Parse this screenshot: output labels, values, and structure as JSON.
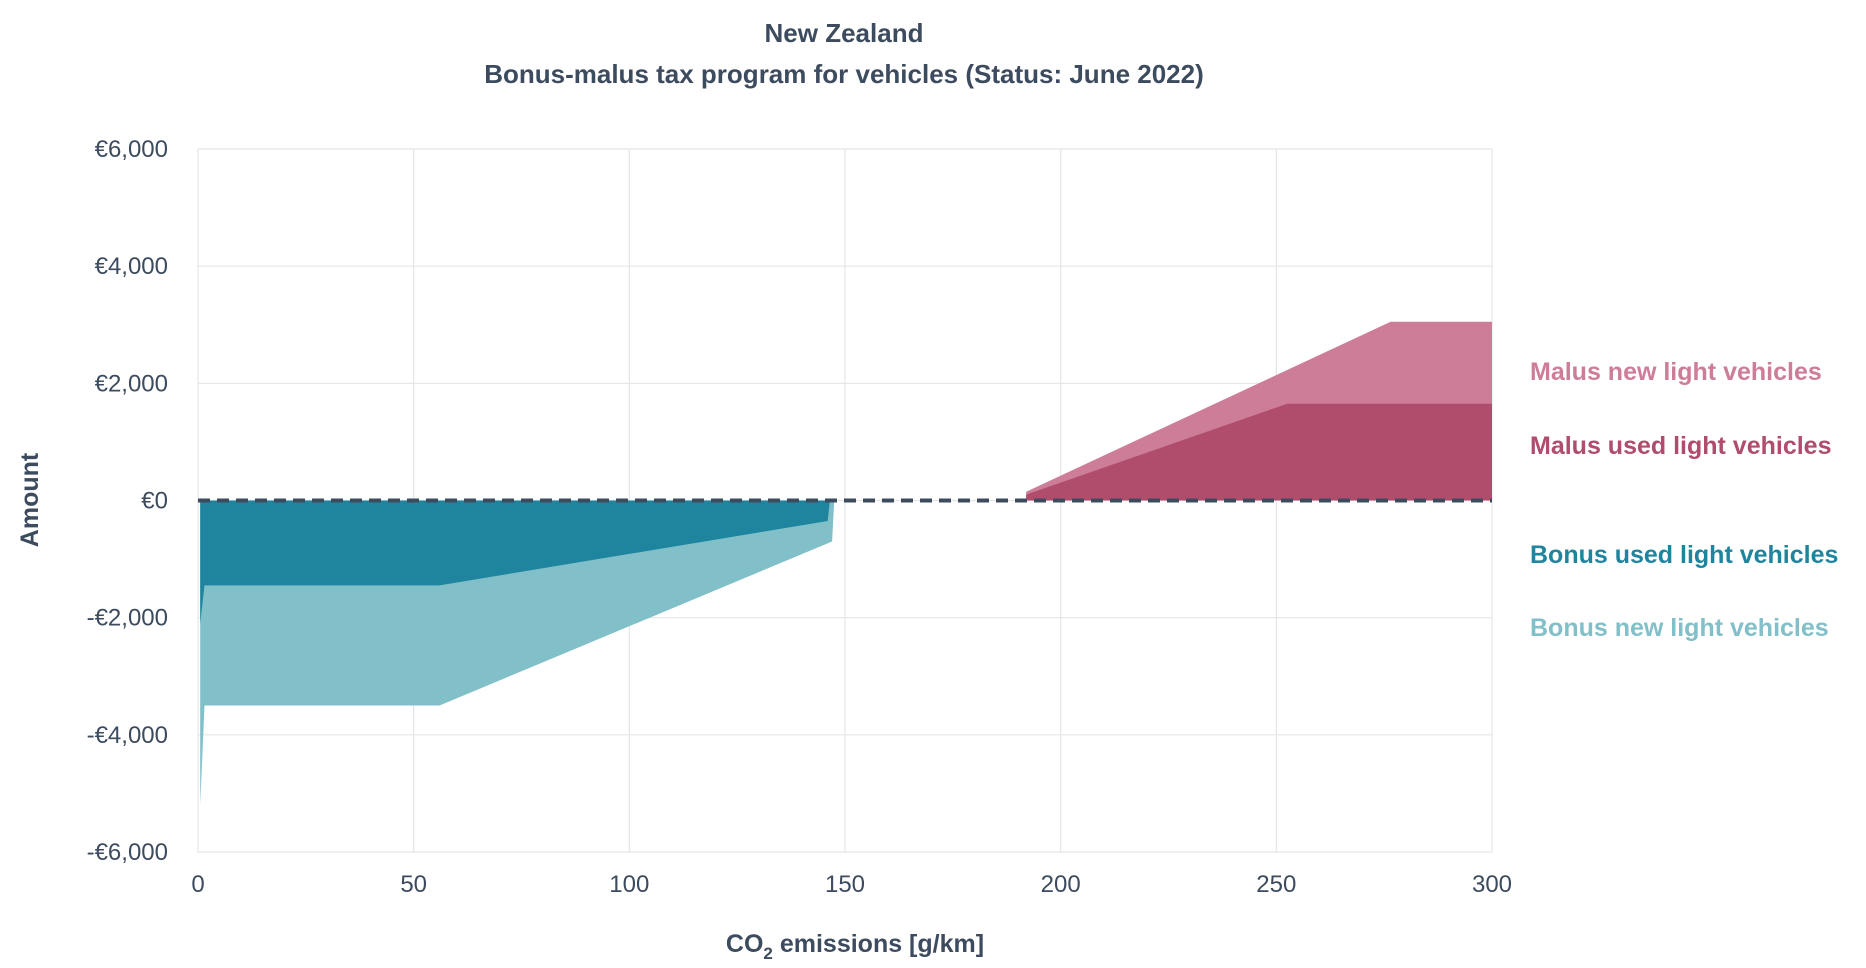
{
  "chart_data": {
    "type": "area",
    "title": "New Zealand",
    "subtitle": "Bonus-malus tax program for vehicles (Status: June 2022)",
    "xlabel_main": "CO",
    "xlabel_sub": "2",
    "xlabel_rest": " emissions [g/km]",
    "ylabel": "Amount",
    "xlim": [
      0,
      300
    ],
    "ylim": [
      -6000,
      6000
    ],
    "x_ticks": [
      {
        "value": 0,
        "label": "0"
      },
      {
        "value": 50,
        "label": "50"
      },
      {
        "value": 100,
        "label": "100"
      },
      {
        "value": 150,
        "label": "150"
      },
      {
        "value": 200,
        "label": "200"
      },
      {
        "value": 250,
        "label": "250"
      },
      {
        "value": 300,
        "label": "300"
      }
    ],
    "y_ticks": [
      {
        "value": 6000,
        "label": "€6,000"
      },
      {
        "value": 4000,
        "label": "€4,000"
      },
      {
        "value": 2000,
        "label": "€2,000"
      },
      {
        "value": 0,
        "label": "€0"
      },
      {
        "value": -2000,
        "label": "-€2,000"
      },
      {
        "value": -4000,
        "label": "-€4,000"
      },
      {
        "value": -6000,
        "label": "-€6,000"
      }
    ],
    "grid": true,
    "zero_line": "dashed",
    "legend_placement": "right",
    "series": [
      {
        "name": "Bonus new light vehicles",
        "color": "#81bfc9",
        "points": [
          [
            0.5,
            0
          ],
          [
            0.5,
            -5200
          ],
          [
            1.5,
            -3500
          ],
          [
            56,
            -3500
          ],
          [
            147,
            -700
          ],
          [
            147.5,
            0
          ]
        ]
      },
      {
        "name": "Bonus used light vehicles",
        "color": "#1f859e",
        "points": [
          [
            0.5,
            0
          ],
          [
            0.5,
            -2100
          ],
          [
            1.5,
            -1450
          ],
          [
            56,
            -1450
          ],
          [
            146,
            -350
          ],
          [
            146.5,
            0
          ]
        ]
      },
      {
        "name": "Malus new light vehicles",
        "color": "#cd7d98",
        "points": [
          [
            192,
            0
          ],
          [
            192,
            150
          ],
          [
            276.5,
            3050
          ],
          [
            300,
            3050
          ],
          [
            300,
            0
          ]
        ]
      },
      {
        "name": "Malus used light vehicles",
        "color": "#b04c6c",
        "points": [
          [
            192,
            0
          ],
          [
            192,
            100
          ],
          [
            252.5,
            1650
          ],
          [
            300,
            1650
          ],
          [
            300,
            0
          ]
        ]
      }
    ],
    "legend": [
      {
        "label": "Malus new light vehicles",
        "color": "#cd7d98"
      },
      {
        "label": "Malus used light vehicles",
        "color": "#b04c6c"
      },
      {
        "label": "Bonus used light vehicles",
        "color": "#1f859e"
      },
      {
        "label": "Bonus new light vehicles",
        "color": "#81bfc9"
      }
    ],
    "axis_text_color": "#3d4b5f",
    "grid_color": "#e5e5e5",
    "zero_line_color": "#3d4b5f"
  }
}
